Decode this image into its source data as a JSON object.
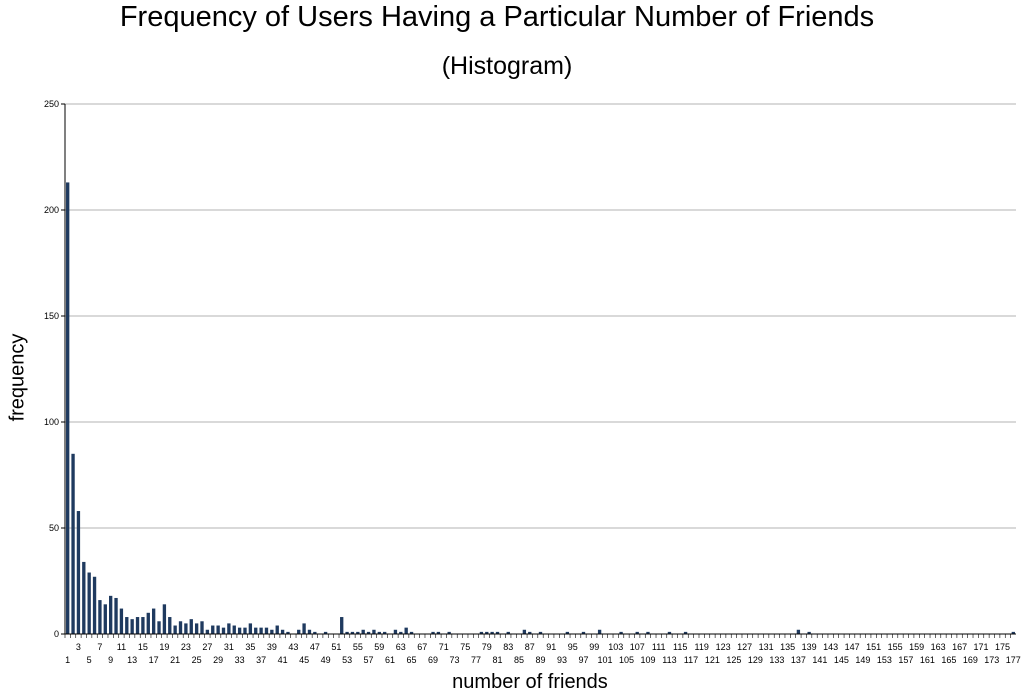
{
  "chart_data": {
    "type": "bar",
    "title": "Frequency of Users Having a Particular Number of Friends",
    "subtitle": "(Histogram)",
    "xlabel": "number of friends",
    "ylabel": "frequency",
    "ylim": [
      0,
      250
    ],
    "yticks": [
      0,
      50,
      100,
      150,
      200,
      250
    ],
    "grid": true,
    "bar_color": "#1f3a5f",
    "x_start": 1,
    "x_end": 177,
    "values": [
      213,
      85,
      58,
      34,
      29,
      27,
      16,
      14,
      18,
      17,
      12,
      8,
      7,
      8,
      8,
      10,
      12,
      6,
      14,
      8,
      4,
      6,
      5,
      7,
      5,
      6,
      2,
      4,
      4,
      3,
      5,
      4,
      3,
      3,
      5,
      3,
      3,
      3,
      2,
      4,
      2,
      1,
      0,
      2,
      5,
      2,
      1,
      0,
      1,
      0,
      0,
      8,
      1,
      1,
      1,
      2,
      1,
      2,
      1,
      1,
      0,
      2,
      1,
      3,
      1,
      0,
      0,
      0,
      1,
      1,
      0,
      1,
      0,
      0,
      0,
      0,
      0,
      1,
      1,
      1,
      1,
      0,
      1,
      0,
      0,
      2,
      1,
      0,
      1,
      0,
      0,
      0,
      0,
      1,
      0,
      0,
      1,
      0,
      0,
      2,
      0,
      0,
      0,
      1,
      0,
      0,
      1,
      0,
      1,
      0,
      0,
      0,
      1,
      0,
      0,
      1,
      0,
      0,
      0,
      0,
      0,
      0,
      0,
      0,
      0,
      0,
      0,
      0,
      0,
      0,
      0,
      0,
      0,
      0,
      0,
      0,
      2,
      0,
      1,
      0,
      0,
      0,
      0,
      0,
      0,
      0,
      0,
      0,
      0,
      0,
      0,
      0,
      0,
      0,
      0,
      0,
      0,
      0,
      0,
      0,
      0,
      0,
      0,
      0,
      0,
      0,
      0,
      0,
      0,
      0,
      0,
      0,
      0,
      0,
      0,
      0,
      1
    ]
  }
}
